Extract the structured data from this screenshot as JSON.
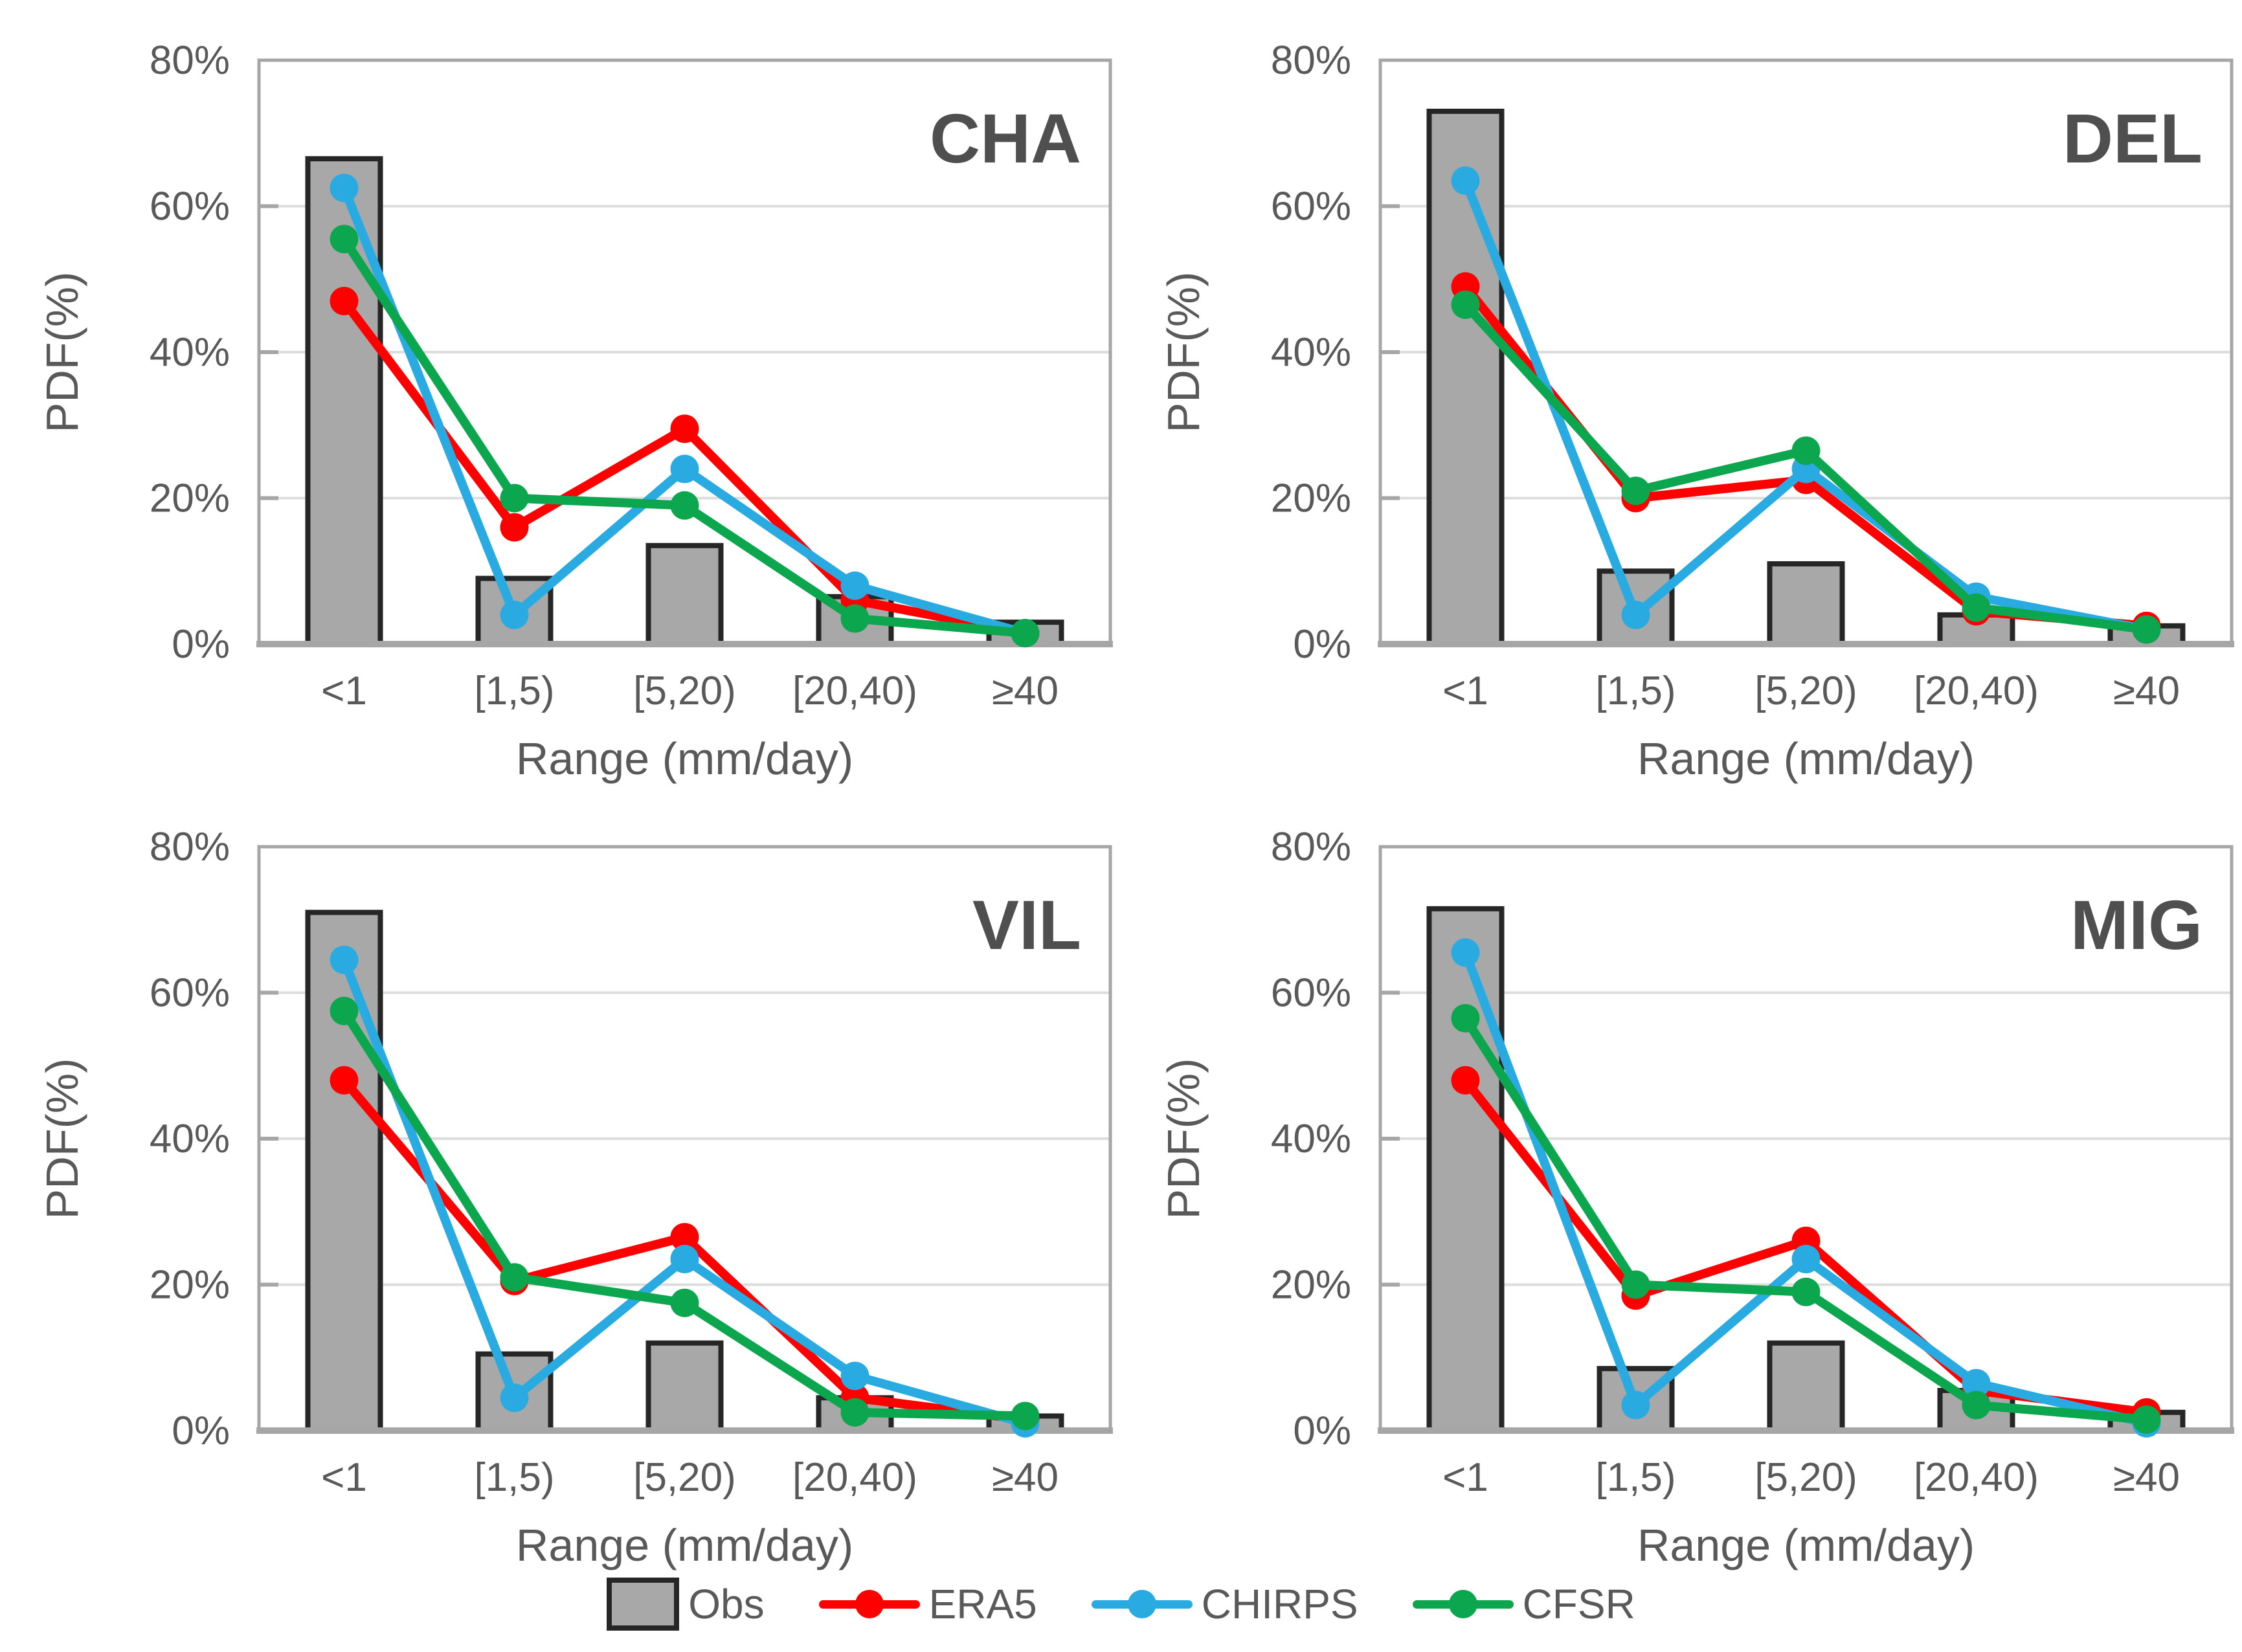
{
  "colors": {
    "obs_fill": "#A8A8A8",
    "obs_border": "#262626",
    "era5": "#FE0000",
    "chirps": "#29ABE2",
    "cfsr": "#0CA64F",
    "grid": "#DDDDDD",
    "axis": "#A6A6A6",
    "text": "#595959",
    "title": "#4F4F4F",
    "background": "#FFFFFF"
  },
  "chart_data": [
    {
      "type": "bar",
      "subtype": "bar+line-combo",
      "title": "CHA",
      "categories": [
        "<1",
        "[1,5)",
        "[5,20)",
        "[20,40)",
        "≥40"
      ],
      "xlabel": "Range (mm/day)",
      "ylabel": "PDF(%)",
      "ylim": [
        0,
        80
      ],
      "yticks": [
        "0%",
        "20%",
        "40%",
        "60%",
        "80%"
      ],
      "grid": "horizontal",
      "legend_position": "bottom-shared",
      "series": [
        {
          "name": "Obs",
          "type": "bar",
          "values": [
            66.5,
            9,
            13.5,
            6.5,
            3
          ]
        },
        {
          "name": "ERA5",
          "type": "line",
          "values": [
            47,
            16,
            29.5,
            6,
            1.5
          ]
        },
        {
          "name": "CHIRPS",
          "type": "line",
          "values": [
            62.5,
            4,
            24,
            8,
            1.5
          ]
        },
        {
          "name": "CFSR",
          "type": "line",
          "values": [
            55.5,
            20,
            19,
            3.5,
            1.5
          ]
        }
      ]
    },
    {
      "type": "bar",
      "subtype": "bar+line-combo",
      "title": "DEL",
      "categories": [
        "<1",
        "[1,5)",
        "[5,20)",
        "[20,40)",
        "≥40"
      ],
      "xlabel": "Range (mm/day)",
      "ylabel": "PDF(%)",
      "ylim": [
        0,
        80
      ],
      "yticks": [
        "0%",
        "20%",
        "40%",
        "60%",
        "80%"
      ],
      "grid": "horizontal",
      "legend_position": "bottom-shared",
      "series": [
        {
          "name": "Obs",
          "type": "bar",
          "values": [
            73,
            10,
            11,
            4,
            2.5
          ]
        },
        {
          "name": "ERA5",
          "type": "line",
          "values": [
            49,
            20,
            22.5,
            4.5,
            2.5
          ]
        },
        {
          "name": "CHIRPS",
          "type": "line",
          "values": [
            63.5,
            4,
            24,
            6.5,
            2
          ]
        },
        {
          "name": "CFSR",
          "type": "line",
          "values": [
            46.5,
            21,
            26.5,
            5,
            2
          ]
        }
      ]
    },
    {
      "type": "bar",
      "subtype": "bar+line-combo",
      "title": "VIL",
      "categories": [
        "<1",
        "[1,5)",
        "[5,20)",
        "[20,40)",
        "≥40"
      ],
      "xlabel": "Range (mm/day)",
      "ylabel": "PDF(%)",
      "ylim": [
        0,
        80
      ],
      "yticks": [
        "0%",
        "20%",
        "40%",
        "60%",
        "80%"
      ],
      "grid": "horizontal",
      "legend_position": "bottom-shared",
      "series": [
        {
          "name": "Obs",
          "type": "bar",
          "values": [
            71,
            10.5,
            12,
            4.5,
            2
          ]
        },
        {
          "name": "ERA5",
          "type": "line",
          "values": [
            48,
            20.5,
            26.5,
            4.5,
            1.5
          ]
        },
        {
          "name": "CHIRPS",
          "type": "line",
          "values": [
            64.5,
            4.5,
            23.5,
            7.5,
            1
          ]
        },
        {
          "name": "CFSR",
          "type": "line",
          "values": [
            57.5,
            21,
            17.5,
            2.5,
            2
          ]
        }
      ]
    },
    {
      "type": "bar",
      "subtype": "bar+line-combo",
      "title": "MIG",
      "categories": [
        "<1",
        "[1,5)",
        "[5,20)",
        "[20,40)",
        "≥40"
      ],
      "xlabel": "Range (mm/day)",
      "ylabel": "PDF(%)",
      "ylim": [
        0,
        80
      ],
      "yticks": [
        "0%",
        "20%",
        "40%",
        "60%",
        "80%"
      ],
      "grid": "horizontal",
      "legend_position": "bottom-shared",
      "series": [
        {
          "name": "Obs",
          "type": "bar",
          "values": [
            71.5,
            8.5,
            12,
            5.5,
            2.5
          ]
        },
        {
          "name": "ERA5",
          "type": "line",
          "values": [
            48,
            18.5,
            26,
            5.5,
            2.5
          ]
        },
        {
          "name": "CHIRPS",
          "type": "line",
          "values": [
            65.5,
            3.5,
            23.5,
            6.5,
            1
          ]
        },
        {
          "name": "CFSR",
          "type": "line",
          "values": [
            56.5,
            20,
            19,
            3.5,
            1.5
          ]
        }
      ]
    }
  ],
  "legend": {
    "items": [
      {
        "label": "Obs",
        "series": "obs",
        "swatch": "bar"
      },
      {
        "label": "ERA5",
        "series": "era5",
        "swatch": "line-dot"
      },
      {
        "label": "CHIRPS",
        "series": "chirps",
        "swatch": "line-dot"
      },
      {
        "label": "CFSR",
        "series": "cfsr",
        "swatch": "line-dot"
      }
    ]
  }
}
